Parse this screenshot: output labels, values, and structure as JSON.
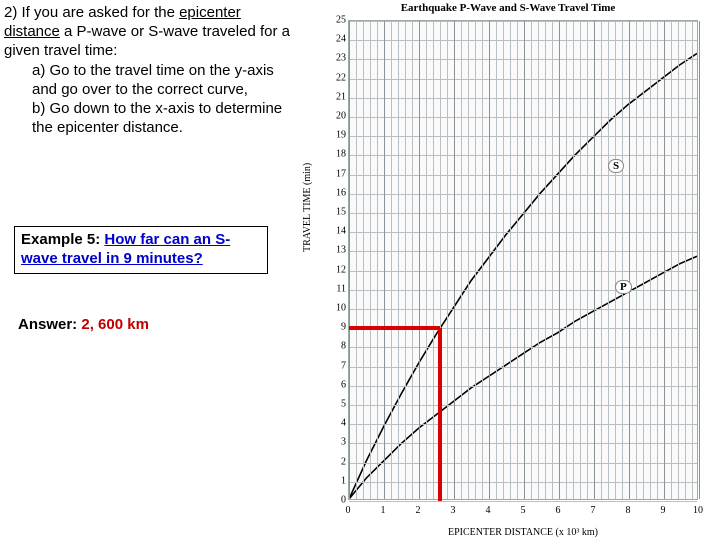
{
  "instruction": {
    "lead": "2) If you are asked for the ",
    "key_phrase": "epicenter distance",
    "lead_after": " a P-wave or S-wave traveled for a given travel time:",
    "step_a": "a) Go to the travel time on the y-axis and go over to the correct curve,",
    "step_b": "b) Go down to the x-axis to determine the epicenter distance."
  },
  "example": {
    "prefix": "Example 5: ",
    "question": "How far can an S-wave travel in 9 minutes?"
  },
  "answer": {
    "prefix": "Answer: ",
    "value": "2, 600 km"
  },
  "chart": {
    "title": "Earthquake P-Wave and S-Wave Travel Time",
    "ylabel": "TRAVEL TIME (min)",
    "xlabel": "EPICENTER DISTANCE (x 10³ km)",
    "x_min": 0,
    "x_max": 10,
    "x_tick_step": 1,
    "x_minor_per_major": 5,
    "y_min": 0,
    "y_max": 25,
    "y_tick_step": 1,
    "plot_bg": "#fafafa",
    "grid_color": "#b8c0c4",
    "curve_color": "#000000",
    "curve_width": 1.6,
    "highlight_color": "#d80000",
    "highlight_width": 4,
    "highlight": {
      "y_value": 9,
      "x_value": 2.6
    },
    "curves": {
      "P": {
        "label": "P",
        "label_pos": {
          "x": 7.6,
          "y": 11.1
        },
        "points": [
          [
            0,
            0
          ],
          [
            0.5,
            1.1
          ],
          [
            1,
            2.0
          ],
          [
            1.5,
            2.9
          ],
          [
            2,
            3.7
          ],
          [
            2.5,
            4.4
          ],
          [
            3,
            5.1
          ],
          [
            3.5,
            5.8
          ],
          [
            4,
            6.4
          ],
          [
            4.5,
            7.0
          ],
          [
            5,
            7.6
          ],
          [
            5.5,
            8.2
          ],
          [
            6,
            8.7
          ],
          [
            6.5,
            9.3
          ],
          [
            7,
            9.8
          ],
          [
            7.5,
            10.3
          ],
          [
            8,
            10.8
          ],
          [
            8.5,
            11.3
          ],
          [
            9,
            11.8
          ],
          [
            9.5,
            12.3
          ],
          [
            10,
            12.7
          ]
        ]
      },
      "S": {
        "label": "S",
        "label_pos": {
          "x": 7.4,
          "y": 17.4
        },
        "points": [
          [
            0,
            0
          ],
          [
            0.5,
            2.0
          ],
          [
            1,
            3.8
          ],
          [
            1.5,
            5.5
          ],
          [
            2,
            7.1
          ],
          [
            2.5,
            8.6
          ],
          [
            3,
            10.0
          ],
          [
            3.5,
            11.4
          ],
          [
            4,
            12.6
          ],
          [
            4.5,
            13.8
          ],
          [
            5,
            14.9
          ],
          [
            5.5,
            16.0
          ],
          [
            6,
            17.0
          ],
          [
            6.5,
            18.0
          ],
          [
            7,
            18.9
          ],
          [
            7.5,
            19.8
          ],
          [
            8,
            20.6
          ],
          [
            8.5,
            21.3
          ],
          [
            9,
            22.0
          ],
          [
            9.5,
            22.7
          ],
          [
            10,
            23.3
          ]
        ]
      }
    }
  }
}
